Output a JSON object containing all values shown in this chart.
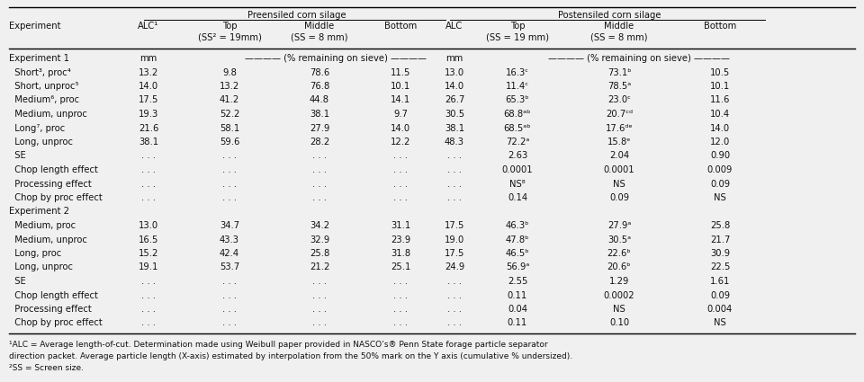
{
  "title_pre": "Preensiled corn silage",
  "title_post": "Postensiled corn silage",
  "bg_color": "#f0f0f0",
  "text_color": "#111111",
  "fontsize": 7.2,
  "header_fontsize": 7.2,
  "fig_width": 9.6,
  "fig_height": 4.25,
  "footnotes": [
    "¹ALC = Average length-of-cut. Determination made using Weibull paper provided in NASCO’s® Penn State forage particle separator",
    "direction packet. Average particle length (X-axis) estimated by interpolation from the 50% mark on the Y axis (cumulative % undersized).",
    "²SS = Screen size."
  ]
}
